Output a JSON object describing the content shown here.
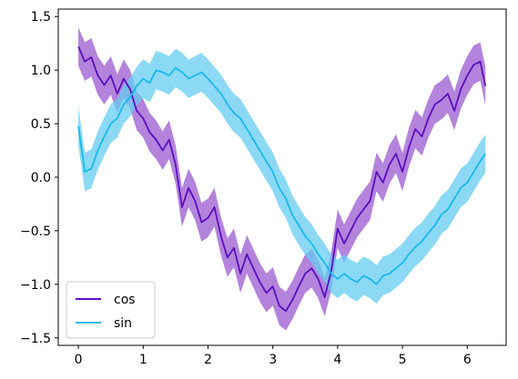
{
  "chart_data": {
    "type": "line",
    "xlim": [
      -0.31,
      6.6
    ],
    "ylim": [
      -1.57,
      1.57
    ],
    "x_ticks": [
      0,
      1,
      2,
      3,
      4,
      5,
      6
    ],
    "y_ticks": [
      -1.5,
      -1.0,
      -0.5,
      0.0,
      0.5,
      1.0,
      1.5
    ],
    "x_tick_labels": [
      "0",
      "1",
      "2",
      "3",
      "4",
      "5",
      "6"
    ],
    "y_tick_labels": [
      "−1.5",
      "−1.0",
      "−0.5",
      "0.0",
      "0.5",
      "1.0",
      "1.5"
    ],
    "grid": false,
    "legend_position": "lower-left",
    "band_halfwidth": 0.18,
    "series": [
      {
        "name": "cos",
        "color": "#5b0fbe",
        "band_color": "#9b59d0",
        "x": [
          0,
          0.1,
          0.2,
          0.3,
          0.4,
          0.5,
          0.6,
          0.7,
          0.8,
          0.9,
          1.0,
          1.1,
          1.2,
          1.3,
          1.4,
          1.5,
          1.6,
          1.7,
          1.8,
          1.9,
          2.0,
          2.1,
          2.2,
          2.3,
          2.4,
          2.5,
          2.6,
          2.7,
          2.8,
          2.9,
          3.0,
          3.1,
          3.2,
          3.3,
          3.4,
          3.5,
          3.6,
          3.7,
          3.8,
          3.9,
          4.0,
          4.1,
          4.2,
          4.3,
          4.4,
          4.5,
          4.6,
          4.7,
          4.8,
          4.9,
          5.0,
          5.1,
          5.2,
          5.3,
          5.4,
          5.5,
          5.6,
          5.7,
          5.8,
          5.9,
          6.0,
          6.1,
          6.2,
          6.28
        ],
        "y": [
          1.22,
          1.08,
          1.12,
          0.95,
          0.86,
          0.95,
          0.78,
          0.92,
          0.82,
          0.62,
          0.55,
          0.42,
          0.35,
          0.25,
          0.35,
          0.12,
          -0.28,
          -0.1,
          -0.22,
          -0.42,
          -0.38,
          -0.28,
          -0.55,
          -0.75,
          -0.66,
          -0.9,
          -0.72,
          -0.85,
          -0.98,
          -1.08,
          -1.02,
          -1.2,
          -1.25,
          -1.15,
          -1.02,
          -0.9,
          -0.85,
          -0.95,
          -1.12,
          -0.88,
          -0.48,
          -0.62,
          -0.5,
          -0.38,
          -0.3,
          -0.22,
          0.05,
          -0.05,
          0.12,
          0.22,
          0.05,
          0.28,
          0.45,
          0.38,
          0.55,
          0.68,
          0.72,
          0.78,
          0.62,
          0.82,
          0.95,
          1.05,
          1.08,
          0.85
        ]
      },
      {
        "name": "sin",
        "color": "#1ab8f0",
        "band_color": "#66ccf2",
        "x": [
          0,
          0.1,
          0.2,
          0.3,
          0.4,
          0.5,
          0.6,
          0.7,
          0.8,
          0.9,
          1.0,
          1.1,
          1.2,
          1.3,
          1.4,
          1.5,
          1.6,
          1.7,
          1.8,
          1.9,
          2.0,
          2.1,
          2.2,
          2.3,
          2.4,
          2.5,
          2.6,
          2.7,
          2.8,
          2.9,
          3.0,
          3.1,
          3.2,
          3.3,
          3.4,
          3.5,
          3.6,
          3.7,
          3.8,
          3.9,
          4.0,
          4.1,
          4.2,
          4.3,
          4.4,
          4.5,
          4.6,
          4.7,
          4.8,
          4.9,
          5.0,
          5.1,
          5.2,
          5.3,
          5.4,
          5.5,
          5.6,
          5.7,
          5.8,
          5.9,
          6.0,
          6.1,
          6.2,
          6.28
        ],
        "y": [
          0.48,
          0.05,
          0.08,
          0.25,
          0.38,
          0.5,
          0.55,
          0.68,
          0.75,
          0.85,
          0.92,
          0.88,
          1.0,
          0.98,
          0.95,
          1.02,
          0.98,
          0.92,
          0.95,
          0.98,
          0.92,
          0.85,
          0.78,
          0.68,
          0.6,
          0.55,
          0.45,
          0.35,
          0.25,
          0.15,
          0.05,
          -0.1,
          -0.2,
          -0.35,
          -0.45,
          -0.55,
          -0.62,
          -0.72,
          -0.8,
          -0.9,
          -0.95,
          -0.9,
          -0.95,
          -0.98,
          -0.92,
          -0.95,
          -1.0,
          -0.92,
          -0.9,
          -0.85,
          -0.8,
          -0.72,
          -0.65,
          -0.6,
          -0.52,
          -0.45,
          -0.35,
          -0.3,
          -0.2,
          -0.1,
          -0.05,
          0.05,
          0.15,
          0.22
        ]
      }
    ]
  }
}
